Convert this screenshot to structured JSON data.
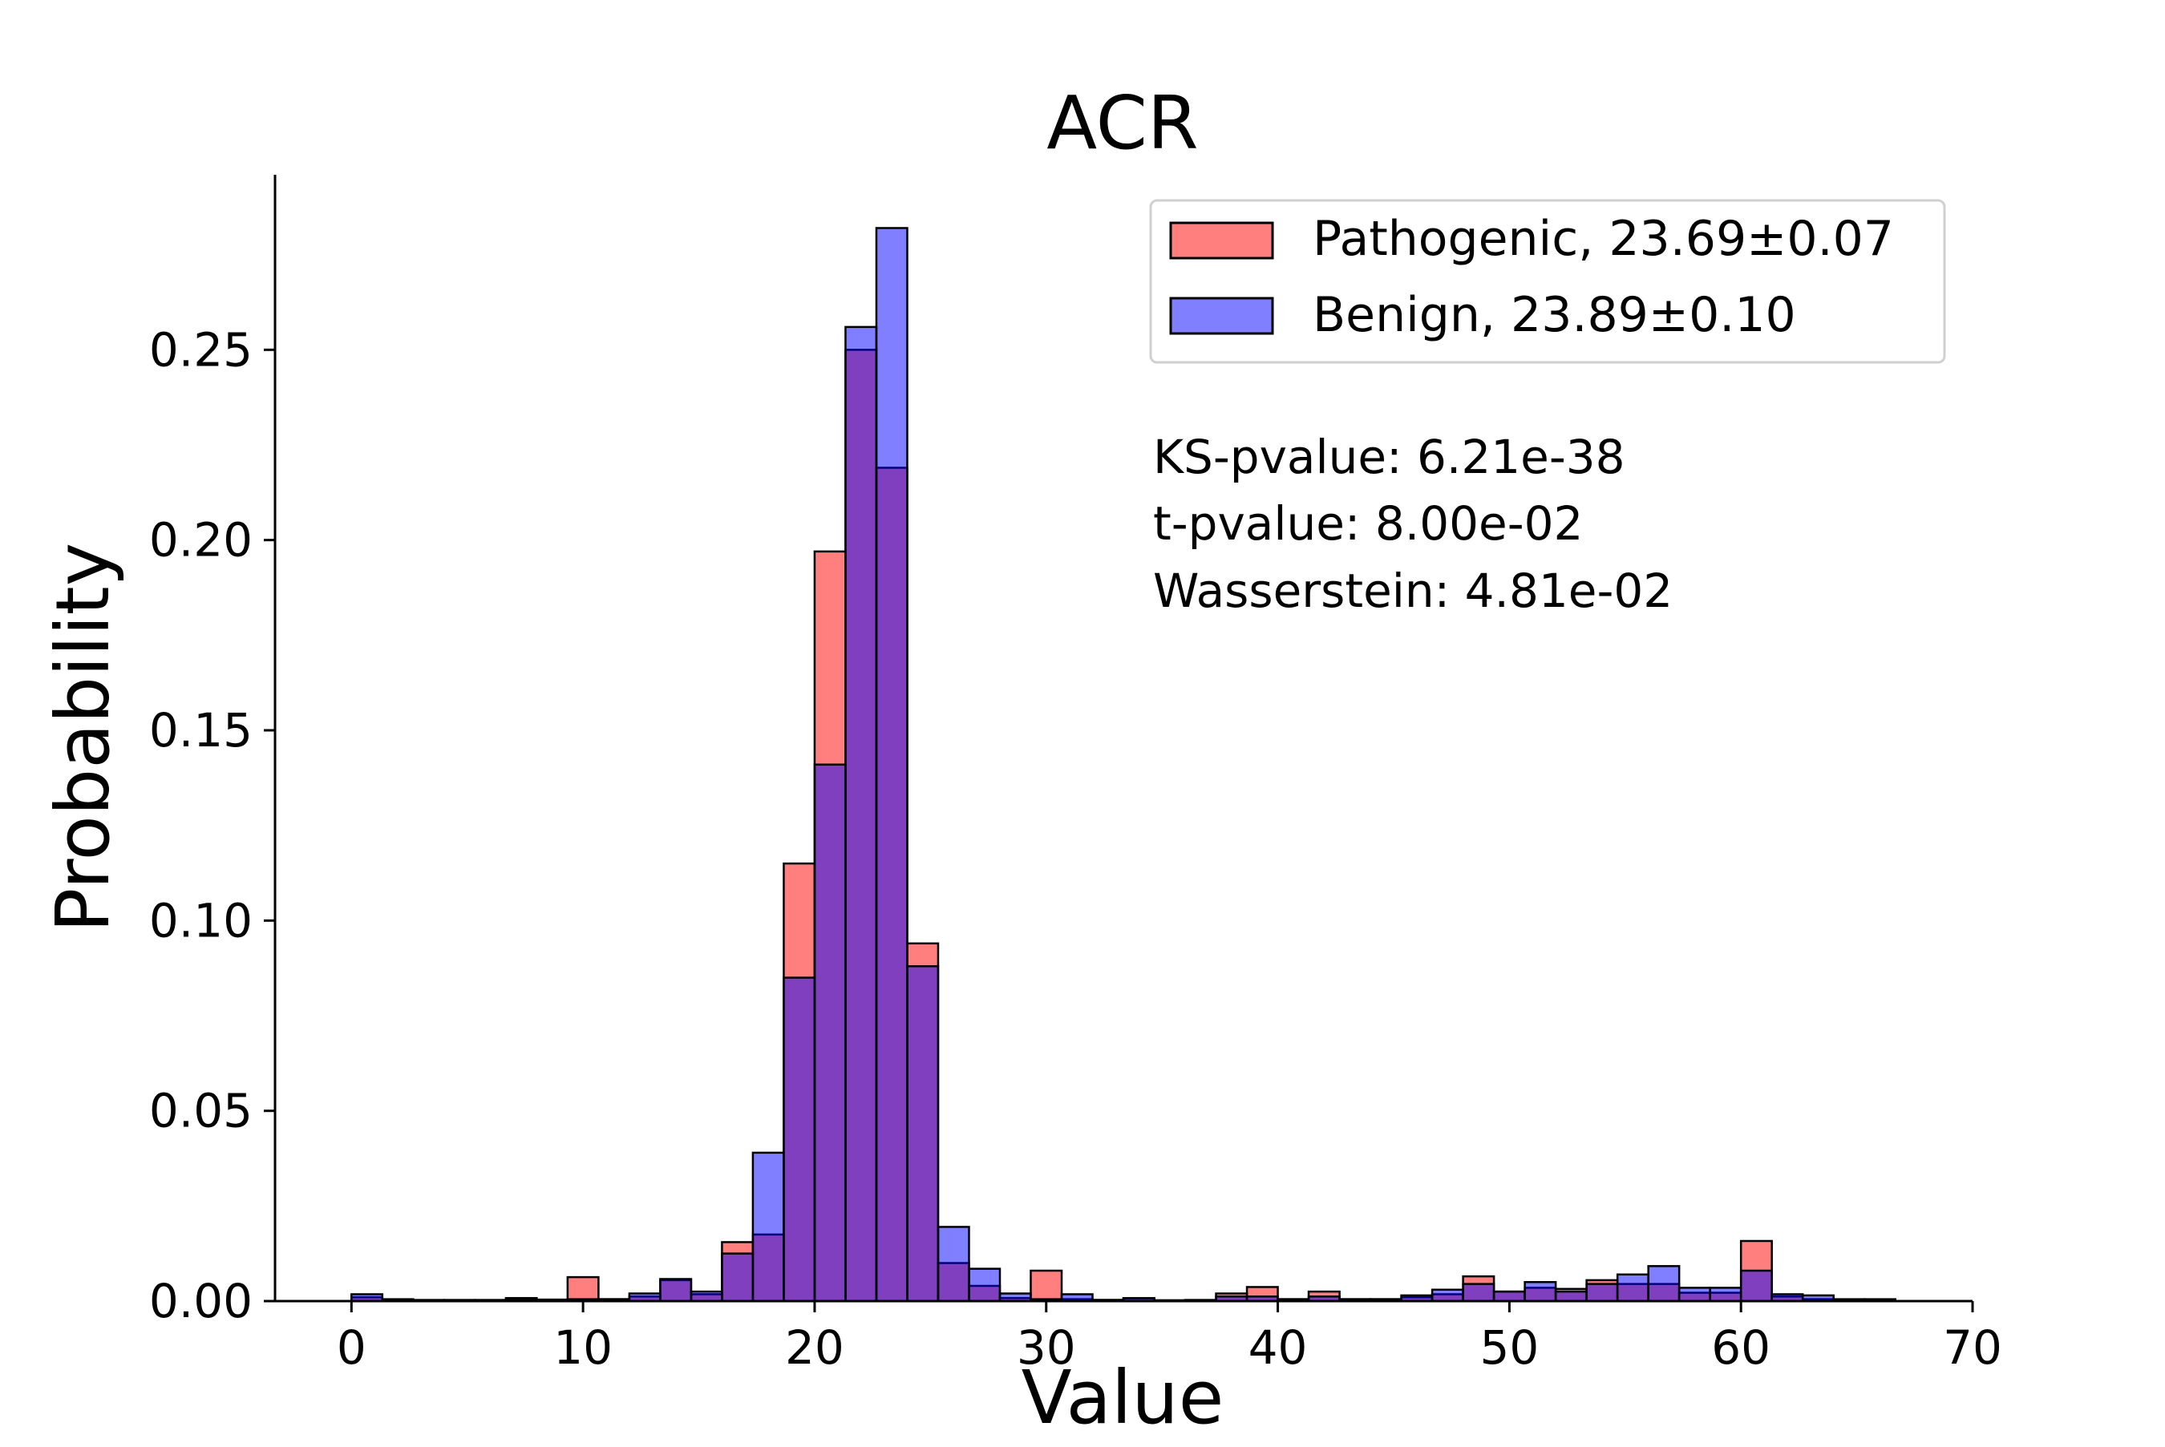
{
  "chart_data": {
    "type": "bar",
    "title": "ACR",
    "xlabel": "Value",
    "ylabel": "Probability",
    "xlim": [
      -3.3,
      70
    ],
    "ylim": [
      0,
      0.296
    ],
    "xticks": [
      0,
      10,
      20,
      30,
      40,
      50,
      60,
      70
    ],
    "yticks": [
      0,
      0.05,
      0.1,
      0.15,
      0.2,
      0.25
    ],
    "ytick_labels": [
      "0.00",
      "0.05",
      "0.10",
      "0.15",
      "0.20",
      "0.25"
    ],
    "grid": false,
    "legend_position": "top-right",
    "bin_edges": [
      0,
      1.333,
      2.667,
      4,
      5.333,
      6.667,
      8,
      9.333,
      10.667,
      12,
      13.333,
      14.667,
      16,
      17.333,
      18.667,
      20,
      21.333,
      22.667,
      24,
      25.333,
      26.667,
      28,
      29.333,
      30.667,
      32,
      33.333,
      34.667,
      36,
      37.333,
      38.667,
      40,
      41.333,
      42.667,
      44,
      45.333,
      46.667,
      48,
      49.333,
      50.667,
      52,
      53.333,
      54.667,
      56,
      57.333,
      58.667,
      60,
      61.333,
      62.667,
      64,
      65.333,
      66.667
    ],
    "series": [
      {
        "name": "Pathogenic, 23.69±0.07",
        "color": "#ff0000",
        "values": [
          0.001,
          0.0005,
          0.0003,
          0.0003,
          0.0003,
          0.0008,
          0.0004,
          0.0063,
          0.0005,
          0.0012,
          0.0055,
          0.0018,
          0.0155,
          0.0175,
          0.115,
          0.197,
          0.25,
          0.219,
          0.094,
          0.01,
          0.004,
          0.0008,
          0.008,
          0.0005,
          0.0003,
          0.0007,
          0.0002,
          0.0003,
          0.002,
          0.0037,
          0.0005,
          0.0025,
          0.0005,
          0.0005,
          0.001,
          0.0018,
          0.0065,
          0.0025,
          0.0035,
          0.0032,
          0.0055,
          0.0045,
          0.0045,
          0.0022,
          0.0022,
          0.0158,
          0.0012,
          0.0005,
          0.0003,
          0.0003
        ]
      },
      {
        "name": "Benign, 23.89±0.10",
        "color": "#0000ff",
        "values": [
          0.0018,
          0.0002,
          0.0001,
          0.0001,
          0.0001,
          0.0003,
          0.0002,
          0.0005,
          0.0005,
          0.002,
          0.0058,
          0.0025,
          0.0125,
          0.039,
          0.085,
          0.141,
          0.256,
          0.282,
          0.088,
          0.0195,
          0.0085,
          0.002,
          0.0005,
          0.0018,
          0.0003,
          0.0008,
          0.0002,
          0.0002,
          0.0012,
          0.0012,
          0.0005,
          0.0012,
          0.0005,
          0.0005,
          0.0015,
          0.003,
          0.0045,
          0.0025,
          0.005,
          0.0025,
          0.0045,
          0.007,
          0.0092,
          0.0035,
          0.0035,
          0.008,
          0.0018,
          0.0015,
          0.0005,
          0.0005
        ]
      }
    ],
    "annotations": [
      "KS-pvalue: 6.21e-38",
      "t-pvalue: 8.00e-02",
      "Wasserstein: 4.81e-02"
    ]
  }
}
